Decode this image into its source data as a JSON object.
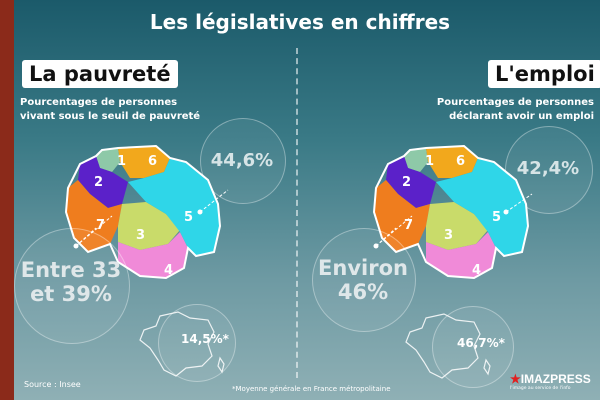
{
  "title": "Les législatives en chiffres",
  "left": {
    "heading": "La pauvreté",
    "subtitle": "Pourcentages de personnes vivant sous le seuil de pauvreté",
    "region5_value": "44,6%",
    "regions_2_7_value": "Entre 33 et 39%",
    "france_value": "14,5%*"
  },
  "right": {
    "heading": "L'emploi",
    "subtitle": "Pourcentages de personnes déclarant avoir un emploi",
    "region5_value": "42,4%",
    "regions_2_7_value": "Environ 46%",
    "france_value": "46,7%*"
  },
  "districts": [
    "1",
    "2",
    "3",
    "4",
    "5",
    "6",
    "7"
  ],
  "district_colors": {
    "1": "#8ec9a8",
    "2": "#5b21c9",
    "3": "#c9db6a",
    "4": "#f08ad8",
    "5": "#2fd6e8",
    "6": "#f2a81c",
    "7": "#ef7d1e"
  },
  "footer": {
    "source": "Source : Insee",
    "footnote": "*Moyenne générale en France métropolitaine",
    "logo": "IMAZPRESS",
    "logo_tagline": "l'image au service de l'info"
  }
}
